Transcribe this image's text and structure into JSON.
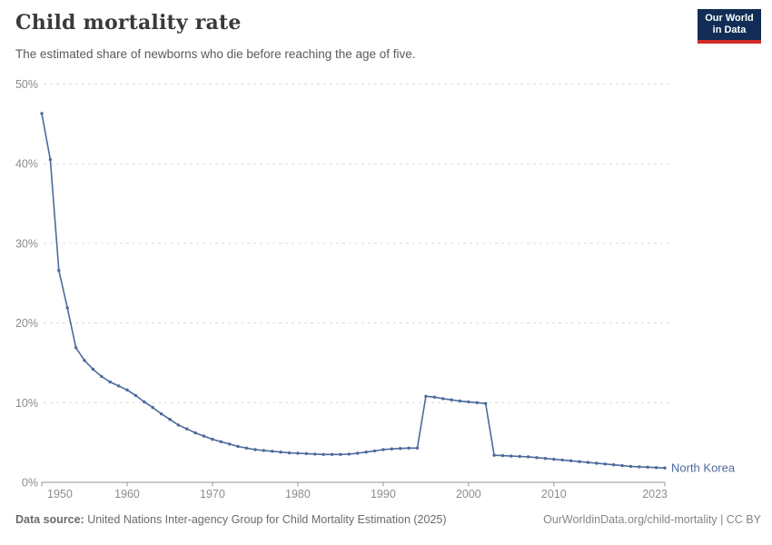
{
  "header": {
    "title": "Child mortality rate",
    "subtitle": "The estimated share of newborns who die before reaching the age of five.",
    "logo": {
      "line1": "Our World",
      "line2": "in Data",
      "bg_color": "#112d55",
      "accent_color": "#d12b27"
    }
  },
  "footer": {
    "data_source_label": "Data source:",
    "data_source_text": " United Nations Inter-agency Group for Child Mortality Estimation (2025)",
    "link_text": "OurWorldinData.org/child-mortality | CC BY"
  },
  "colors": {
    "line": "#4C6A9C",
    "grid": "#dcdcdc",
    "axis": "#969696",
    "tick_label": "#8c8c8c",
    "title": "#3a3a3a",
    "subtitle": "#5a5a5a"
  },
  "chart_data": {
    "type": "line",
    "title": "Child mortality rate",
    "subtitle": "The estimated share of newborns who die before reaching the age of five.",
    "xlabel": "",
    "ylabel": "",
    "unit": "%",
    "grid": "horizontal-dashed",
    "legend_position": "end-of-line-label",
    "xlim": [
      1950,
      2023
    ],
    "ylim": [
      0,
      50
    ],
    "x_ticks": [
      1950,
      1960,
      1970,
      1980,
      1990,
      2000,
      2010,
      2023
    ],
    "x_tick_labels": [
      "1950",
      "1960",
      "1970",
      "1980",
      "1990",
      "2000",
      "2010",
      "2023"
    ],
    "y_ticks": [
      0,
      10,
      20,
      30,
      40,
      50
    ],
    "y_tick_labels": [
      "0%",
      "10%",
      "20%",
      "30%",
      "40%",
      "50%"
    ],
    "series": [
      {
        "name": "North Korea",
        "color": "#4C6A9C",
        "x": [
          1950,
          1951,
          1952,
          1953,
          1954,
          1955,
          1956,
          1957,
          1958,
          1959,
          1960,
          1961,
          1962,
          1963,
          1964,
          1965,
          1966,
          1967,
          1968,
          1969,
          1970,
          1971,
          1972,
          1973,
          1974,
          1975,
          1976,
          1977,
          1978,
          1979,
          1980,
          1981,
          1982,
          1983,
          1984,
          1985,
          1986,
          1987,
          1988,
          1989,
          1990,
          1991,
          1992,
          1993,
          1994,
          1995,
          1996,
          1997,
          1998,
          1999,
          2000,
          2001,
          2002,
          2003,
          2004,
          2005,
          2006,
          2007,
          2008,
          2009,
          2010,
          2011,
          2012,
          2013,
          2014,
          2015,
          2016,
          2017,
          2018,
          2019,
          2020,
          2021,
          2022,
          2023
        ],
        "values": [
          46.3,
          40.5,
          26.6,
          21.9,
          16.9,
          15.3,
          14.2,
          13.3,
          12.6,
          12.1,
          11.6,
          10.9,
          10.1,
          9.4,
          8.6,
          7.9,
          7.2,
          6.7,
          6.2,
          5.8,
          5.4,
          5.1,
          4.8,
          4.5,
          4.3,
          4.1,
          4.0,
          3.9,
          3.8,
          3.7,
          3.65,
          3.6,
          3.55,
          3.5,
          3.5,
          3.5,
          3.55,
          3.65,
          3.8,
          3.95,
          4.1,
          4.2,
          4.25,
          4.3,
          4.3,
          10.8,
          10.7,
          10.5,
          10.35,
          10.2,
          10.1,
          10.0,
          9.9,
          3.4,
          3.35,
          3.3,
          3.25,
          3.2,
          3.1,
          3.0,
          2.9,
          2.8,
          2.7,
          2.6,
          2.5,
          2.4,
          2.3,
          2.2,
          2.1,
          2.0,
          1.95,
          1.9,
          1.85,
          1.8
        ]
      }
    ]
  }
}
